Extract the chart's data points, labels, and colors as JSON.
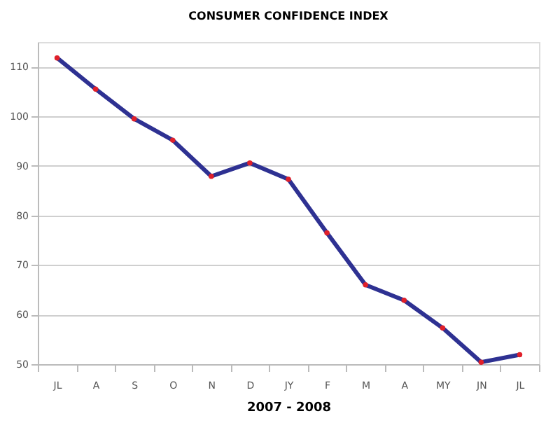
{
  "chart_data": {
    "type": "line",
    "title": "CONSUMER CONFIDENCE INDEX",
    "xlabel": "2007 - 2008",
    "categories": [
      "JL",
      "A",
      "S",
      "O",
      "N",
      "D",
      "JY",
      "F",
      "M",
      "A",
      "MY",
      "JN",
      "JL"
    ],
    "series": [
      {
        "color": "#2e3192",
        "values": [
          111.8,
          105.5,
          99.5,
          95.2,
          87.9,
          90.6,
          87.3,
          76.5,
          66,
          62.9,
          57.3,
          50.4,
          51.9
        ]
      }
    ],
    "ylim": [
      50,
      115
    ],
    "yticks": [
      50,
      60,
      70,
      80,
      90,
      100,
      110
    ],
    "grid": "y",
    "marker": "circle",
    "line_style": "solid"
  }
}
